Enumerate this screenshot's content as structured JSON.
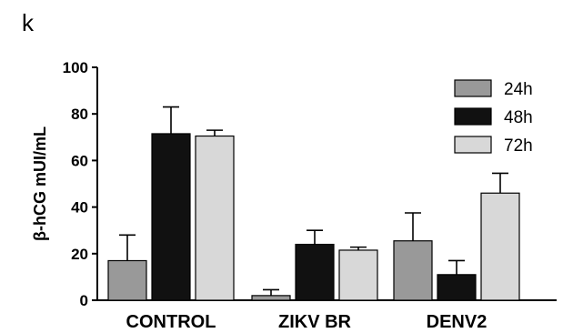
{
  "panel_label": "k",
  "chart_data": {
    "type": "bar",
    "title": "",
    "xlabel": "",
    "ylabel": "β-hCG mUI/mL",
    "ylim": [
      0,
      100
    ],
    "yticks": [
      0,
      20,
      40,
      60,
      80,
      100
    ],
    "categories": [
      "CONTROL",
      "ZIKV BR",
      "DENV2"
    ],
    "series": [
      {
        "name": "24h",
        "color": "#999999",
        "values": [
          17,
          2,
          25.5
        ],
        "errors": [
          11,
          2.5,
          12
        ]
      },
      {
        "name": "48h",
        "color": "#111111",
        "values": [
          71.5,
          24,
          11
        ],
        "errors": [
          11.5,
          6,
          6
        ]
      },
      {
        "name": "72h",
        "color": "#d8d8d8",
        "values": [
          70.5,
          21.5,
          46
        ],
        "errors": [
          2.5,
          1.3,
          8.5
        ]
      }
    ],
    "error_bars": "upper",
    "legend_position": "top-right",
    "grid": false
  }
}
